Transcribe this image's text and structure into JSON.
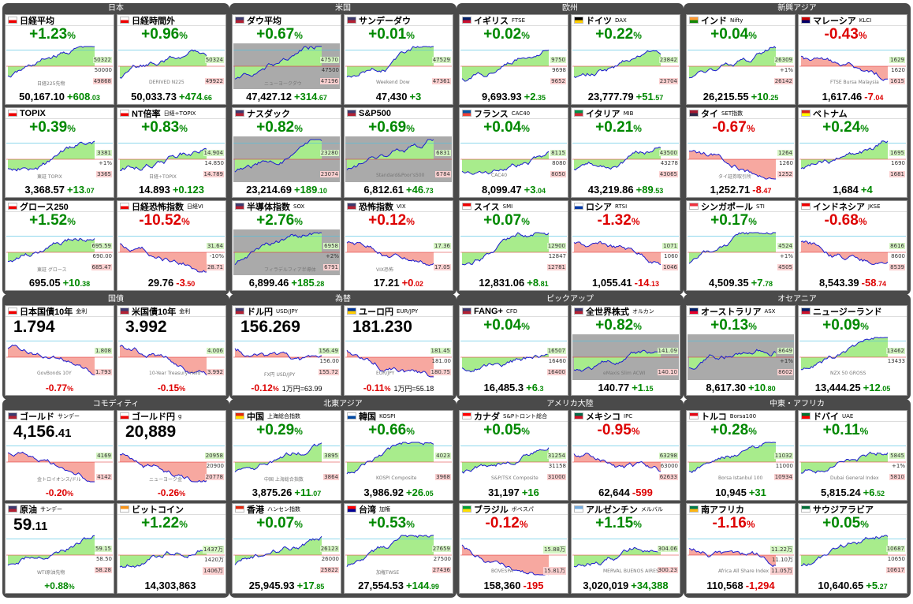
{
  "colors": {
    "up": "#008800",
    "down": "#dd0000",
    "area_up": "#a8ec8c",
    "area_dn": "#f7a8a0",
    "line": "#1a1ad0"
  },
  "sections": [
    {
      "title": "日本",
      "cells": [
        {
          "name": "日経平均",
          "sub": "",
          "flag": "jp",
          "pct": "+1.23",
          "dir": "up",
          "price": "50,167",
          "dec": ".10",
          "chg": "+608",
          "chgdec": ".03",
          "hi": "50322",
          "mid": "50000",
          "lo": "49868",
          "wm": "日経225先物"
        },
        {
          "name": "日経時間外",
          "sub": "",
          "flag": "jp",
          "pct": "+0.96",
          "dir": "up",
          "price": "50,033",
          "dec": ".73",
          "chg": "+474",
          "chgdec": ".66",
          "hi": "50324",
          "mid": "",
          "lo": "49922",
          "wm": "DERIVED N225"
        },
        {
          "name": "TOPIX",
          "sub": "",
          "flag": "jp",
          "pct": "+0.39",
          "dir": "up",
          "price": "3,368",
          "dec": ".57",
          "chg": "+13",
          "chgdec": ".07",
          "hi": "3381",
          "mid": "+1%",
          "lo": "3365",
          "wm": "東証 TOPIX"
        },
        {
          "name": "NT倍率",
          "sub": "日経÷TOPIX",
          "flag": "jp",
          "pct": "+0.83",
          "dir": "up",
          "price": "14.893",
          "dec": "",
          "chg": "+0.123",
          "chgdec": "",
          "hi": "14.904",
          "mid": "14.850",
          "lo": "14.789",
          "wm": "日経÷TOPIX"
        },
        {
          "name": "グロース250",
          "sub": "",
          "flag": "jp",
          "pct": "+1.52",
          "dir": "up",
          "price": "695",
          "dec": ".05",
          "chg": "+10",
          "chgdec": ".38",
          "hi": "695.59",
          "mid": "690.00",
          "lo": "685.47",
          "wm": "東証 グロース"
        },
        {
          "name": "日経恐怖指数",
          "sub": "日経VI",
          "flag": "jp",
          "pct": "-10.52",
          "dir": "dn",
          "price": "29",
          "dec": ".76",
          "chg": "-3",
          "chgdec": ".50",
          "hi": "31.64",
          "mid": "-10%",
          "lo": "28.71",
          "wm": ""
        }
      ]
    },
    {
      "title": "米国",
      "cells": [
        {
          "name": "ダウ平均",
          "sub": "",
          "flag": "us",
          "pct": "+0.67",
          "dir": "up",
          "price": "47,427",
          "dec": ".12",
          "chg": "+314",
          "chgdec": ".67",
          "hi": "47570",
          "mid": "47500",
          "lo": "47196",
          "wm": "ニューヨークダウ"
        },
        {
          "name": "サンデーダウ",
          "sub": "",
          "flag": "us",
          "pct": "+0.01",
          "dir": "up",
          "price": "47,430",
          "dec": "",
          "chg": "+3",
          "chgdec": "",
          "hi": "47529",
          "mid": "",
          "lo": "47361",
          "wm": "Weekend Dow"
        },
        {
          "name": "ナスダック",
          "sub": "",
          "flag": "us",
          "pct": "+0.82",
          "dir": "up",
          "price": "23,214",
          "dec": ".69",
          "chg": "+189",
          "chgdec": ".10",
          "hi": "23280",
          "mid": "",
          "lo": "23074",
          "wm": ""
        },
        {
          "name": "S&P500",
          "sub": "",
          "flag": "us",
          "pct": "+0.69",
          "dir": "up",
          "price": "6,812",
          "dec": ".61",
          "chg": "+46",
          "chgdec": ".73",
          "hi": "6831",
          "mid": "",
          "lo": "6784",
          "wm": "Standard&Poor's500"
        },
        {
          "name": "半導体指数",
          "sub": "SOX",
          "flag": "us",
          "pct": "+2.76",
          "dir": "up",
          "price": "6,899",
          "dec": ".46",
          "chg": "+185",
          "chgdec": ".28",
          "hi": "6958",
          "mid": "+2%",
          "lo": "6791",
          "wm": "フィラデルフィア半導体"
        },
        {
          "name": "恐怖指数",
          "sub": "VIX",
          "flag": "us",
          "pct": "+0.12",
          "dir": "dn",
          "price": "17",
          "dec": ".21",
          "chg": "+0",
          "chgdec": ".02",
          "hi": "17.36",
          "mid": "",
          "lo": "17.05",
          "wm": "VIX恐怖"
        }
      ]
    },
    {
      "title": "欧州",
      "cells": [
        {
          "name": "イギリス",
          "sub": "FTSE",
          "flag": "gb",
          "pct": "+0.02",
          "dir": "up",
          "price": "9,693",
          "dec": ".93",
          "chg": "+2",
          "chgdec": ".35",
          "hi": "9750",
          "mid": "9698",
          "lo": "9652",
          "wm": ""
        },
        {
          "name": "ドイツ",
          "sub": "DAX",
          "flag": "de",
          "pct": "+0.22",
          "dir": "up",
          "price": "23,777",
          "dec": ".79",
          "chg": "+51",
          "chgdec": ".57",
          "hi": "23842",
          "mid": "",
          "lo": "23704",
          "wm": ""
        },
        {
          "name": "フランス",
          "sub": "CAC40",
          "flag": "fr",
          "pct": "+0.04",
          "dir": "up",
          "price": "8,099",
          "dec": ".47",
          "chg": "+3",
          "chgdec": ".04",
          "hi": "8115",
          "mid": "8080",
          "lo": "8050",
          "wm": "CAC40"
        },
        {
          "name": "イタリア",
          "sub": "MIB",
          "flag": "it",
          "pct": "+0.21",
          "dir": "up",
          "price": "43,219",
          "dec": ".86",
          "chg": "+89",
          "chgdec": ".53",
          "hi": "43500",
          "mid": "43278",
          "lo": "43065",
          "wm": ""
        },
        {
          "name": "スイス",
          "sub": "SMI",
          "flag": "ch",
          "pct": "+0.07",
          "dir": "up",
          "price": "12,831",
          "dec": ".06",
          "chg": "+8",
          "chgdec": ".81",
          "hi": "12900",
          "mid": "12847",
          "lo": "12781",
          "wm": ""
        },
        {
          "name": "ロシア",
          "sub": "RTSI",
          "flag": "ru",
          "pct": "-1.32",
          "dir": "dn",
          "price": "1,055",
          "dec": ".41",
          "chg": "-14",
          "chgdec": ".13",
          "hi": "1071",
          "mid": "1060",
          "lo": "1046",
          "wm": ""
        }
      ]
    },
    {
      "title": "新興アジア",
      "cells": [
        {
          "name": "インド",
          "sub": "Nifty",
          "flag": "in",
          "pct": "+0.04",
          "dir": "up",
          "price": "26,215",
          "dec": ".55",
          "chg": "+10",
          "chgdec": ".25",
          "hi": "26309",
          "mid": "+1%",
          "lo": "26142",
          "wm": ""
        },
        {
          "name": "マレーシア",
          "sub": "KLCI",
          "flag": "my",
          "pct": "-0.43",
          "dir": "dn",
          "price": "1,617",
          "dec": ".46",
          "chg": "-7",
          "chgdec": ".04",
          "hi": "1629",
          "mid": "1620",
          "lo": "1615",
          "wm": "FTSE Bursa Malaysia"
        },
        {
          "name": "タイ",
          "sub": "SET指数",
          "flag": "th",
          "pct": "-0.67",
          "dir": "dn",
          "price": "1,252",
          "dec": ".71",
          "chg": "-8",
          "chgdec": ".47",
          "hi": "1264",
          "mid": "1260",
          "lo": "1252",
          "wm": "タイ証券取引所"
        },
        {
          "name": "ベトナム",
          "sub": "",
          "flag": "vn",
          "pct": "+0.24",
          "dir": "up",
          "price": "1,684",
          "dec": "",
          "chg": "+4",
          "chgdec": "",
          "hi": "1695",
          "mid": "1690",
          "lo": "1681",
          "wm": ""
        },
        {
          "name": "シンガポール",
          "sub": "STI",
          "flag": "sg",
          "pct": "+0.17",
          "dir": "up",
          "price": "4,509",
          "dec": ".35",
          "chg": "+7",
          "chgdec": ".78",
          "hi": "4524",
          "mid": "+1%",
          "lo": "4505",
          "wm": ""
        },
        {
          "name": "インドネシア",
          "sub": "JKSE",
          "flag": "id",
          "pct": "-0.68",
          "dir": "dn",
          "price": "8,543",
          "dec": ".39",
          "chg": "-58",
          "chgdec": ".74",
          "hi": "8616",
          "mid": "8600",
          "lo": "8539",
          "wm": ""
        }
      ]
    },
    {
      "title": "国債",
      "cells": [
        {
          "name": "日本国債10年",
          "sub": "金利",
          "flag": "jp",
          "big": "1.794",
          "pct2": "-0.77",
          "dir": "dn",
          "hi": "1.808",
          "mid": "",
          "lo": "1.793",
          "wm": "GovBonds 10Y"
        },
        {
          "name": "米国債10年",
          "sub": "金利",
          "flag": "us",
          "big": "3.992",
          "pct2": "-0.15",
          "dir": "dn",
          "hi": "4.006",
          "mid": "",
          "lo": "3.992",
          "wm": "10-Year Treasury Yield"
        }
      ]
    },
    {
      "title": "為替",
      "cells": [
        {
          "name": "ドル円",
          "sub": "USD/JPY",
          "flag": "us",
          "big": "156.269",
          "pct2": "-0.12",
          "dir": "dn",
          "yen": "1万円=63.99",
          "hi": "156.49",
          "mid": "156.00",
          "lo": "155.72",
          "wm": "FX円 USD/JPY"
        },
        {
          "name": "ユーロ円",
          "sub": "EUR/JPY",
          "flag": "eu",
          "big": "181.230",
          "pct2": "-0.11",
          "dir": "dn",
          "yen": "1万円=55.18",
          "hi": "181.45",
          "mid": "181.00",
          "lo": "180.75",
          "wm": "EUR/JPY"
        }
      ]
    },
    {
      "title": "ピックアップ",
      "cells": [
        {
          "name": "FANG+",
          "sub": "CFD",
          "flag": "us",
          "pct": "+0.04",
          "dir": "up",
          "price": "16,485",
          "dec": ".3",
          "chg": "+6",
          "chgdec": ".3",
          "hi": "16507",
          "mid": "16460",
          "lo": "16400",
          "wm": ""
        },
        {
          "name": "全世界株式",
          "sub": "オルカン",
          "flag": "us",
          "pct": "+0.82",
          "dir": "up",
          "price": "140",
          "dec": ".77",
          "chg": "+1",
          "chgdec": ".15",
          "hi": "141.09",
          "mid": "",
          "lo": "140.10",
          "wm": "eMaxis Slim ACWI"
        }
      ]
    },
    {
      "title": "オセアニア",
      "cells": [
        {
          "name": "オーストラリア",
          "sub": "ASX",
          "flag": "au",
          "pct": "+0.13",
          "dir": "up",
          "price": "8,617",
          "dec": ".30",
          "chg": "+10",
          "chgdec": ".80",
          "hi": "8649",
          "mid": "+1%",
          "lo": "8602",
          "wm": ""
        },
        {
          "name": "ニュージーランド",
          "sub": "",
          "flag": "nz",
          "pct": "+0.09",
          "dir": "up",
          "price": "13,444",
          "dec": ".25",
          "chg": "+12",
          "chgdec": ".05",
          "hi": "13462",
          "mid": "13433",
          "lo": "",
          "wm": "NZX 50 GROSS"
        }
      ]
    },
    {
      "title": "コモディティ",
      "cells": [
        {
          "name": "ゴールド",
          "sub": "サンデー",
          "flag": "us",
          "big": "4,156",
          "bigdec": ".41",
          "pct2": "-0.20",
          "dir": "dn",
          "hi": "4169",
          "mid": "",
          "lo": "4142",
          "wm": "金トロイオンス/ドル"
        },
        {
          "name": "ゴールド円",
          "sub": "g",
          "flag": "jp",
          "big": "20,889",
          "bigdec": "",
          "pct2": "-0.26",
          "dir": "dn",
          "hi": "20958",
          "mid": "20900",
          "lo": "20778",
          "wm": "ニューヨーク金"
        },
        {
          "name": "原油",
          "sub": "サンデー",
          "flag": "us",
          "big": "59",
          "bigdec": ".11",
          "pct2": "+0.88",
          "dir": "up",
          "hi": "59.15",
          "mid": "58.50",
          "lo": "58.28",
          "wm": "WTI原油先物"
        },
        {
          "name": "ビットコイン",
          "sub": "",
          "flag": "btc",
          "pct": "+1.22",
          "dir": "up",
          "price": "14,303,863",
          "dec": "",
          "chg": "",
          "chgdec": "",
          "hi": "1437万",
          "mid": "1420万",
          "lo": "1406万",
          "wm": ""
        }
      ]
    },
    {
      "title": "北東アジア",
      "cells": [
        {
          "name": "中国",
          "sub": "上海総合指数",
          "flag": "cn",
          "pct": "+0.29",
          "dir": "up",
          "price": "3,875",
          "dec": ".26",
          "chg": "+11",
          "chgdec": ".07",
          "hi": "3895",
          "mid": "",
          "lo": "3864",
          "wm": "中国 上海総合指数"
        },
        {
          "name": "韓国",
          "sub": "KOSPI",
          "flag": "kr",
          "pct": "+0.66",
          "dir": "up",
          "price": "3,986",
          "dec": ".92",
          "chg": "+26",
          "chgdec": ".05",
          "hi": "4023",
          "mid": "",
          "lo": "3968",
          "wm": "KOSPI Composite"
        },
        {
          "name": "香港",
          "sub": "ハンセン指数",
          "flag": "hk",
          "pct": "+0.07",
          "dir": "up",
          "price": "25,945",
          "dec": ".93",
          "chg": "+17",
          "chgdec": ".85",
          "hi": "26123",
          "mid": "26000",
          "lo": "25822",
          "wm": ""
        },
        {
          "name": "台湾",
          "sub": "加権",
          "flag": "tw",
          "pct": "+0.53",
          "dir": "up",
          "price": "27,554",
          "dec": ".53",
          "chg": "+144",
          "chgdec": ".99",
          "hi": "27659",
          "mid": "27500",
          "lo": "27436",
          "wm": "加権TWSE"
        }
      ]
    },
    {
      "title": "アメリカ大陸",
      "cells": [
        {
          "name": "カナダ",
          "sub": "S&Pトロント総合",
          "flag": "ca",
          "pct": "+0.05",
          "dir": "up",
          "price": "31,197",
          "dec": "",
          "chg": "+16",
          "chgdec": "",
          "hi": "31254",
          "mid": "31158",
          "lo": "31000",
          "wm": "S&P/TSX Composite"
        },
        {
          "name": "メキシコ",
          "sub": "IPC",
          "flag": "mx",
          "pct": "-0.95",
          "dir": "dn",
          "price": "62,644",
          "dec": "",
          "chg": "-599",
          "chgdec": "",
          "hi": "63298",
          "mid": "63000",
          "lo": "62633",
          "wm": ""
        },
        {
          "name": "ブラジル",
          "sub": "ボベスパ",
          "flag": "br",
          "pct": "-0.12",
          "dir": "dn",
          "price": "158,360",
          "dec": "",
          "chg": "-195",
          "chgdec": "",
          "hi": "15.88万",
          "mid": "",
          "lo": "15.81万",
          "wm": "BOVESPA"
        },
        {
          "name": "アルゼンチン",
          "sub": "メルバル",
          "flag": "ar",
          "pct": "+1.15",
          "dir": "up",
          "price": "3,020,019",
          "dec": "",
          "chg": "+34,388",
          "chgdec": "",
          "hi": "304.06",
          "mid": "",
          "lo": "300.23",
          "wm": "MERVAL BUENOS AIRES"
        }
      ]
    },
    {
      "title": "中東・アフリカ",
      "cells": [
        {
          "name": "トルコ",
          "sub": "Borsa100",
          "flag": "tr",
          "pct": "+0.28",
          "dir": "up",
          "price": "10,945",
          "dec": "",
          "chg": "+31",
          "chgdec": "",
          "hi": "11032",
          "mid": "11000",
          "lo": "10934",
          "wm": "Borsa Istanbul 100"
        },
        {
          "name": "ドバイ",
          "sub": "UAE",
          "flag": "ae",
          "pct": "+0.11",
          "dir": "up",
          "price": "5,815",
          "dec": ".24",
          "chg": "+6",
          "chgdec": ".52",
          "hi": "5845",
          "mid": "+1%",
          "lo": "5810",
          "wm": "Dubai General Index"
        },
        {
          "name": "南アフリカ",
          "sub": "",
          "flag": "za",
          "pct": "-1.16",
          "dir": "dn",
          "price": "110,568",
          "dec": "",
          "chg": "-1,294",
          "chgdec": "",
          "hi": "11.22万",
          "mid": "11.10万",
          "lo": "11.05万",
          "wm": "Africa All Share Index"
        },
        {
          "name": "サウジアラビア",
          "sub": "",
          "flag": "sa",
          "pct": "+0.05",
          "dir": "up",
          "price": "10,640",
          "dec": ".65",
          "chg": "+5",
          "chgdec": ".27",
          "hi": "10687",
          "mid": "10650",
          "lo": "10617",
          "wm": ""
        }
      ]
    }
  ]
}
